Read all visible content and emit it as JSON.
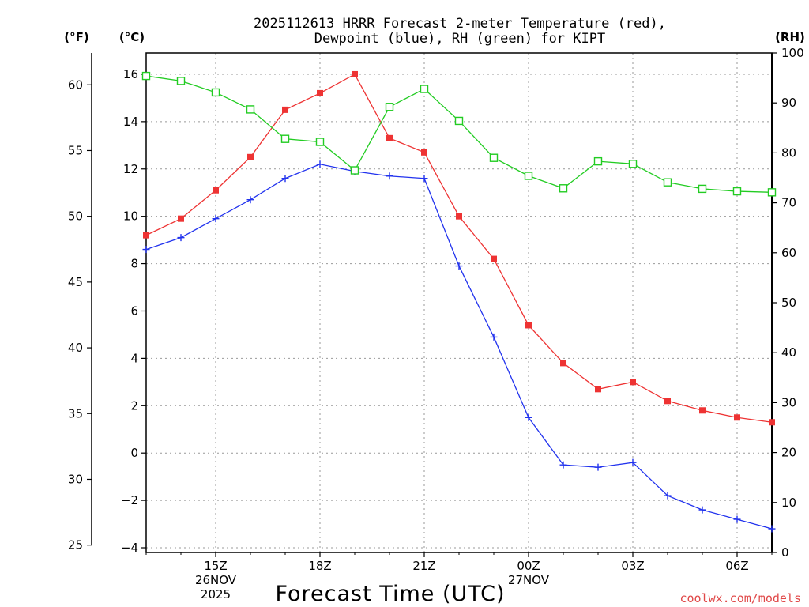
{
  "chart_data": {
    "type": "line",
    "title": [
      "2025112613 HRRR Forecast 2-meter Temperature (red),",
      "Dewpoint (blue), RH (green) for KIPT"
    ],
    "left_outer_unit": "(°F)",
    "left_inner_unit": "(°C)",
    "right_unit": "(RH)",
    "xlabel": "Forecast Time (UTC)",
    "credit": "coolwx.com/models",
    "x_hours": [
      13,
      14,
      15,
      16,
      17,
      18,
      19,
      20,
      21,
      22,
      23,
      24,
      25,
      26,
      27,
      28,
      29,
      30,
      31
    ],
    "x_ticks": [
      {
        "hour": 15,
        "lines": [
          "15Z",
          "26NOV",
          "2025"
        ]
      },
      {
        "hour": 18,
        "lines": [
          "18Z"
        ]
      },
      {
        "hour": 21,
        "lines": [
          "21Z"
        ]
      },
      {
        "hour": 24,
        "lines": [
          "00Z",
          "27NOV"
        ]
      },
      {
        "hour": 27,
        "lines": [
          "03Z"
        ]
      },
      {
        "hour": 30,
        "lines": [
          "06Z"
        ]
      }
    ],
    "celsius_axis": {
      "min": -4.2,
      "max": 16.9,
      "ticks": [
        -4,
        -2,
        0,
        2,
        4,
        6,
        8,
        10,
        12,
        14,
        16
      ]
    },
    "fahrenheit_ticks": [
      25,
      30,
      35,
      40,
      45,
      50,
      55,
      60
    ],
    "rh_axis": {
      "min": 0,
      "max": 100,
      "ticks": [
        0,
        10,
        20,
        30,
        40,
        50,
        60,
        70,
        80,
        90,
        100
      ]
    },
    "series": [
      {
        "name": "Temperature (°C)",
        "color": "#ee3333",
        "axis": "celsius",
        "marker": "filled-square",
        "values": [
          9.2,
          9.9,
          11.1,
          12.5,
          14.5,
          15.2,
          16.0,
          13.3,
          12.7,
          10.0,
          8.2,
          5.4,
          3.8,
          2.7,
          3.0,
          2.2,
          1.8,
          1.5,
          1.3
        ]
      },
      {
        "name": "Dewpoint (°C)",
        "color": "#2233ee",
        "axis": "celsius",
        "marker": "plus",
        "values": [
          8.6,
          9.1,
          9.9,
          10.7,
          11.6,
          12.2,
          11.9,
          11.7,
          11.6,
          7.9,
          4.9,
          1.5,
          -0.5,
          -0.6,
          -0.4,
          -1.8,
          -2.4,
          -2.8,
          -3.2
        ]
      },
      {
        "name": "RH (%)",
        "color": "#22cc22",
        "axis": "rh",
        "marker": "open-square",
        "values": [
          95.4,
          94.4,
          92.1,
          88.7,
          82.8,
          82.2,
          76.5,
          89.2,
          92.8,
          86.4,
          79.0,
          75.4,
          72.9,
          78.3,
          77.8,
          74.1,
          72.8,
          72.3,
          72.1
        ]
      }
    ]
  }
}
